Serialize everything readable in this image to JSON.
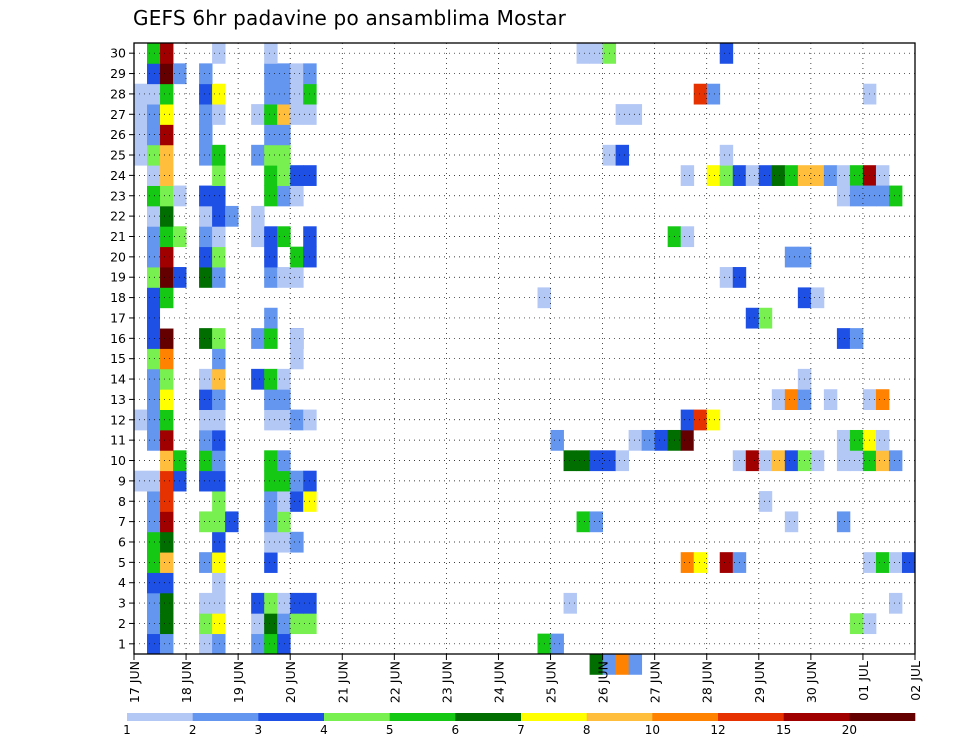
{
  "title": "GEFS 6hr padavine po ansamblima Mostar",
  "chart_data": {
    "type": "heatmap",
    "title": "GEFS 6hr padavine po ansamblima Mostar",
    "xlabel": "",
    "ylabel": "",
    "x_tick_labels": [
      "17 JUN",
      "18 JUN",
      "19 JUN",
      "20 JUN",
      "21 JUN",
      "22 JUN",
      "23 JUN",
      "24 JUN",
      "25 JUN",
      "26 JUN",
      "27 JUN",
      "28 JUN",
      "29 JUN",
      "30 JUN",
      "01 JUL",
      "02 JUL"
    ],
    "y_tick_labels": [
      "1",
      "2",
      "3",
      "4",
      "5",
      "6",
      "7",
      "8",
      "9",
      "10",
      "11",
      "12",
      "13",
      "14",
      "15",
      "16",
      "17",
      "18",
      "19",
      "20",
      "21",
      "22",
      "23",
      "24",
      "25",
      "26",
      "27",
      "28",
      "29",
      "30"
    ],
    "grid": true,
    "colorbar": {
      "labels": [
        "1",
        "2",
        "3",
        "4",
        "5",
        "6",
        "7",
        "8",
        "10",
        "12",
        "15",
        "20"
      ],
      "colors": [
        "#b4c8f5",
        "#6496f0",
        "#1e50e6",
        "#78f050",
        "#14c814",
        "#006e00",
        "#ffff00",
        "#ffbe3c",
        "#ff8200",
        "#e63200",
        "#a00000",
        "#640000"
      ]
    },
    "cells": [
      [
        1,
        1,
        3
      ],
      [
        2,
        1,
        2
      ],
      [
        1,
        2,
        2
      ],
      [
        2,
        2,
        6
      ],
      [
        1,
        3,
        2
      ],
      [
        2,
        3,
        6
      ],
      [
        1,
        4,
        3
      ],
      [
        2,
        4,
        3
      ],
      [
        1,
        5,
        5
      ],
      [
        2,
        5,
        8
      ],
      [
        1,
        6,
        5
      ],
      [
        2,
        6,
        6
      ],
      [
        1,
        7,
        2
      ],
      [
        2,
        7,
        11
      ],
      [
        1,
        8,
        2
      ],
      [
        2,
        8,
        10
      ],
      [
        0,
        9,
        1
      ],
      [
        1,
        9,
        1
      ],
      [
        2,
        9,
        10
      ],
      [
        3,
        9,
        3
      ],
      [
        2,
        10,
        8
      ],
      [
        3,
        10,
        5
      ],
      [
        1,
        11,
        2
      ],
      [
        2,
        11,
        11
      ],
      [
        0,
        12,
        1
      ],
      [
        1,
        12,
        2
      ],
      [
        2,
        12,
        5
      ],
      [
        1,
        13,
        2
      ],
      [
        2,
        13,
        7
      ],
      [
        1,
        14,
        2
      ],
      [
        2,
        14,
        4
      ],
      [
        1,
        15,
        4
      ],
      [
        2,
        15,
        9
      ],
      [
        1,
        16,
        3
      ],
      [
        2,
        16,
        12
      ],
      [
        1,
        17,
        3
      ],
      [
        2,
        17,
        13
      ],
      [
        1,
        18,
        3
      ],
      [
        2,
        18,
        5
      ],
      [
        1,
        19,
        4
      ],
      [
        2,
        19,
        12
      ],
      [
        3,
        19,
        3
      ],
      [
        1,
        20,
        2
      ],
      [
        2,
        20,
        11
      ],
      [
        1,
        21,
        2
      ],
      [
        2,
        21,
        5
      ],
      [
        3,
        21,
        4
      ],
      [
        1,
        22,
        1
      ],
      [
        2,
        22,
        6
      ],
      [
        1,
        23,
        5
      ],
      [
        2,
        23,
        4
      ],
      [
        3,
        23,
        1
      ],
      [
        1,
        24,
        1
      ],
      [
        2,
        24,
        8
      ],
      [
        0,
        25,
        1
      ],
      [
        1,
        25,
        4
      ],
      [
        2,
        25,
        8
      ],
      [
        0,
        26,
        1
      ],
      [
        1,
        26,
        2
      ],
      [
        2,
        26,
        11
      ],
      [
        0,
        27,
        1
      ],
      [
        1,
        27,
        2
      ],
      [
        2,
        27,
        7
      ],
      [
        0,
        28,
        1
      ],
      [
        1,
        28,
        1
      ],
      [
        2,
        28,
        5
      ],
      [
        1,
        29,
        3
      ],
      [
        2,
        29,
        12
      ],
      [
        3,
        29,
        2
      ],
      [
        1,
        30,
        5
      ],
      [
        2,
        30,
        11
      ],
      [
        5,
        1,
        1
      ],
      [
        6,
        1,
        2
      ],
      [
        5,
        2,
        4
      ],
      [
        6,
        2,
        7
      ],
      [
        5,
        3,
        1
      ],
      [
        6,
        3,
        1
      ],
      [
        6,
        4,
        1
      ],
      [
        5,
        5,
        2
      ],
      [
        6,
        5,
        7
      ],
      [
        6,
        6,
        3
      ],
      [
        5,
        7,
        4
      ],
      [
        6,
        7,
        4
      ],
      [
        7,
        7,
        3
      ],
      [
        6,
        8,
        4
      ],
      [
        5,
        9,
        3
      ],
      [
        6,
        9,
        3
      ],
      [
        5,
        10,
        5
      ],
      [
        6,
        10,
        2
      ],
      [
        5,
        11,
        2
      ],
      [
        6,
        11,
        3
      ],
      [
        5,
        12,
        1
      ],
      [
        6,
        12,
        1
      ],
      [
        5,
        13,
        3
      ],
      [
        6,
        13,
        2
      ],
      [
        5,
        14,
        1
      ],
      [
        6,
        14,
        8
      ],
      [
        6,
        15,
        2
      ],
      [
        5,
        16,
        6
      ],
      [
        6,
        16,
        4
      ],
      [
        5,
        19,
        6
      ],
      [
        6,
        19,
        2
      ],
      [
        5,
        20,
        3
      ],
      [
        6,
        20,
        4
      ],
      [
        5,
        21,
        2
      ],
      [
        6,
        21,
        1
      ],
      [
        5,
        22,
        1
      ],
      [
        6,
        22,
        3
      ],
      [
        7,
        22,
        2
      ],
      [
        5,
        23,
        3
      ],
      [
        6,
        23,
        3
      ],
      [
        6,
        24,
        4
      ],
      [
        5,
        25,
        2
      ],
      [
        6,
        25,
        5
      ],
      [
        5,
        26,
        2
      ],
      [
        5,
        27,
        2
      ],
      [
        6,
        27,
        1
      ],
      [
        5,
        28,
        3
      ],
      [
        6,
        28,
        7
      ],
      [
        5,
        29,
        2
      ],
      [
        6,
        30,
        1
      ],
      [
        9,
        1,
        2
      ],
      [
        10,
        1,
        5
      ],
      [
        11,
        1,
        3
      ],
      [
        9,
        2,
        1
      ],
      [
        10,
        2,
        6
      ],
      [
        11,
        2,
        2
      ],
      [
        12,
        2,
        4
      ],
      [
        13,
        2,
        4
      ],
      [
        9,
        3,
        3
      ],
      [
        10,
        3,
        4
      ],
      [
        11,
        3,
        1
      ],
      [
        12,
        3,
        3
      ],
      [
        13,
        3,
        3
      ],
      [
        10,
        5,
        3
      ],
      [
        10,
        6,
        1
      ],
      [
        11,
        6,
        1
      ],
      [
        12,
        6,
        2
      ],
      [
        10,
        7,
        2
      ],
      [
        11,
        7,
        4
      ],
      [
        10,
        8,
        2
      ],
      [
        11,
        8,
        1
      ],
      [
        12,
        8,
        3
      ],
      [
        13,
        8,
        7
      ],
      [
        10,
        9,
        5
      ],
      [
        11,
        9,
        5
      ],
      [
        12,
        9,
        2
      ],
      [
        13,
        9,
        3
      ],
      [
        10,
        10,
        5
      ],
      [
        11,
        10,
        2
      ],
      [
        10,
        12,
        1
      ],
      [
        11,
        12,
        1
      ],
      [
        12,
        12,
        2
      ],
      [
        13,
        12,
        1
      ],
      [
        10,
        13,
        2
      ],
      [
        11,
        13,
        2
      ],
      [
        9,
        14,
        3
      ],
      [
        10,
        14,
        5
      ],
      [
        11,
        14,
        1
      ],
      [
        9,
        16,
        2
      ],
      [
        10,
        16,
        5
      ],
      [
        12,
        16,
        3
      ],
      [
        12,
        15,
        1
      ],
      [
        12,
        16,
        1
      ],
      [
        10,
        17,
        2
      ],
      [
        10,
        19,
        2
      ],
      [
        11,
        19,
        1
      ],
      [
        12,
        19,
        1
      ],
      [
        10,
        20,
        3
      ],
      [
        12,
        20,
        5
      ],
      [
        13,
        20,
        3
      ],
      [
        9,
        21,
        1
      ],
      [
        10,
        21,
        3
      ],
      [
        11,
        21,
        5
      ],
      [
        13,
        21,
        3
      ],
      [
        9,
        22,
        1
      ],
      [
        10,
        23,
        5
      ],
      [
        11,
        23,
        2
      ],
      [
        12,
        23,
        1
      ],
      [
        10,
        24,
        5
      ],
      [
        11,
        24,
        4
      ],
      [
        12,
        24,
        3
      ],
      [
        13,
        24,
        3
      ],
      [
        9,
        25,
        2
      ],
      [
        10,
        25,
        4
      ],
      [
        11,
        25,
        4
      ],
      [
        10,
        26,
        2
      ],
      [
        11,
        26,
        2
      ],
      [
        9,
        27,
        1
      ],
      [
        10,
        27,
        5
      ],
      [
        11,
        27,
        8
      ],
      [
        12,
        27,
        1
      ],
      [
        13,
        27,
        1
      ],
      [
        10,
        28,
        2
      ],
      [
        11,
        28,
        2
      ],
      [
        12,
        28,
        1
      ],
      [
        13,
        28,
        5
      ],
      [
        10,
        29,
        2
      ],
      [
        11,
        29,
        2
      ],
      [
        12,
        29,
        1
      ],
      [
        13,
        29,
        2
      ],
      [
        10,
        30,
        1
      ],
      [
        31,
        1,
        5
      ],
      [
        32,
        1,
        2
      ],
      [
        31,
        18,
        1
      ],
      [
        32,
        11,
        2
      ],
      [
        34,
        7,
        5
      ],
      [
        35,
        7,
        2
      ],
      [
        33,
        10,
        6
      ],
      [
        34,
        10,
        6
      ],
      [
        35,
        10,
        3
      ],
      [
        36,
        10,
        3
      ],
      [
        37,
        10,
        1
      ],
      [
        33,
        3,
        1
      ],
      [
        35,
        0,
        6
      ],
      [
        36,
        0,
        2
      ],
      [
        37,
        0,
        9
      ],
      [
        38,
        0,
        2
      ],
      [
        34,
        30,
        1
      ],
      [
        35,
        30,
        1
      ],
      [
        36,
        30,
        4
      ],
      [
        36,
        25,
        1
      ],
      [
        37,
        25,
        3
      ],
      [
        37,
        27,
        1
      ],
      [
        38,
        27,
        1
      ],
      [
        38,
        11,
        1
      ],
      [
        39,
        11,
        2
      ],
      [
        40,
        11,
        3
      ],
      [
        41,
        11,
        6
      ],
      [
        42,
        11,
        12
      ],
      [
        43,
        11,
        13
      ],
      [
        42,
        12,
        3
      ],
      [
        43,
        12,
        10
      ],
      [
        44,
        12,
        7
      ],
      [
        41,
        21,
        5
      ],
      [
        42,
        21,
        1
      ],
      [
        43,
        28,
        10
      ],
      [
        44,
        28,
        2
      ],
      [
        45,
        30,
        3
      ],
      [
        42,
        5,
        9
      ],
      [
        43,
        5,
        7
      ],
      [
        45,
        5,
        11
      ],
      [
        46,
        5,
        2
      ],
      [
        42,
        24,
        1
      ],
      [
        44,
        24,
        7
      ],
      [
        45,
        24,
        4
      ],
      [
        46,
        24,
        3
      ],
      [
        47,
        24,
        1
      ],
      [
        48,
        24,
        3
      ],
      [
        49,
        24,
        6
      ],
      [
        50,
        24,
        5
      ],
      [
        51,
        24,
        8
      ],
      [
        52,
        24,
        8
      ],
      [
        53,
        24,
        2
      ],
      [
        54,
        24,
        1
      ],
      [
        55,
        24,
        5
      ],
      [
        56,
        24,
        11
      ],
      [
        57,
        24,
        1
      ],
      [
        45,
        25,
        1
      ],
      [
        45,
        19,
        1
      ],
      [
        46,
        19,
        3
      ],
      [
        47,
        17,
        3
      ],
      [
        48,
        17,
        4
      ],
      [
        50,
        18,
        13
      ],
      [
        51,
        18,
        3
      ],
      [
        52,
        18,
        1
      ],
      [
        46,
        10,
        1
      ],
      [
        47,
        10,
        11
      ],
      [
        48,
        10,
        1
      ],
      [
        49,
        10,
        8
      ],
      [
        50,
        10,
        3
      ],
      [
        51,
        10,
        4
      ],
      [
        52,
        10,
        1
      ],
      [
        54,
        10,
        1
      ],
      [
        55,
        10,
        1
      ],
      [
        56,
        10,
        5
      ],
      [
        57,
        10,
        8
      ],
      [
        58,
        10,
        2
      ],
      [
        49,
        13,
        1
      ],
      [
        50,
        13,
        9
      ],
      [
        51,
        13,
        2
      ],
      [
        53,
        13,
        1
      ],
      [
        56,
        13,
        1
      ],
      [
        57,
        13,
        9
      ],
      [
        50,
        20,
        2
      ],
      [
        51,
        20,
        2
      ],
      [
        51,
        14,
        1
      ],
      [
        48,
        8,
        1
      ],
      [
        50,
        7,
        1
      ],
      [
        54,
        7,
        2
      ],
      [
        54,
        11,
        1
      ],
      [
        55,
        11,
        5
      ],
      [
        56,
        11,
        7
      ],
      [
        57,
        11,
        1
      ],
      [
        55,
        2,
        4
      ],
      [
        56,
        2,
        1
      ],
      [
        58,
        3,
        1
      ],
      [
        56,
        5,
        1
      ],
      [
        57,
        5,
        5
      ],
      [
        58,
        5,
        1
      ],
      [
        59,
        5,
        3
      ],
      [
        54,
        16,
        3
      ],
      [
        55,
        16,
        2
      ],
      [
        54,
        23,
        1
      ],
      [
        55,
        23,
        2
      ],
      [
        56,
        23,
        2
      ],
      [
        57,
        23,
        2
      ],
      [
        58,
        23,
        5
      ],
      [
        56,
        28,
        1
      ]
    ]
  }
}
